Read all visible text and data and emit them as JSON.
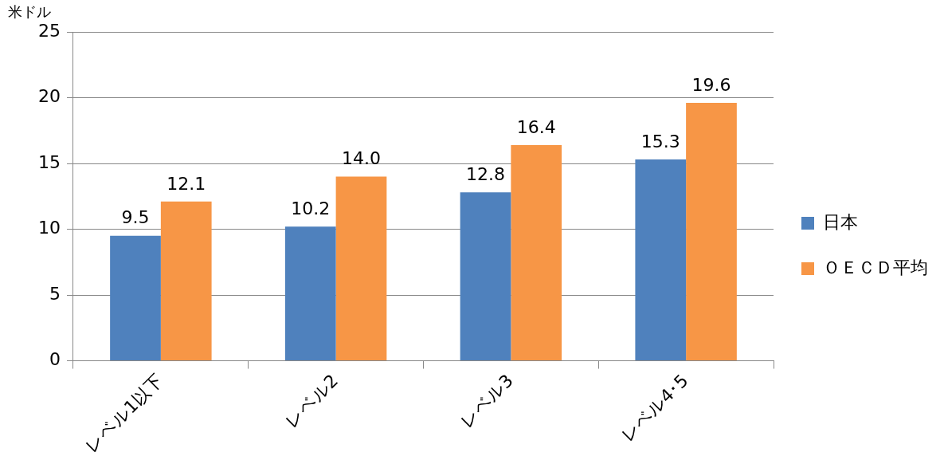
{
  "chart_data": {
    "type": "bar",
    "ylabel": "米ドル",
    "categories": [
      "レベル1以下",
      "レベル2",
      "レベル3",
      "レベル4･5"
    ],
    "series": [
      {
        "name": "日本",
        "color": "#4f81bd",
        "values": [
          9.5,
          10.2,
          12.8,
          15.3
        ],
        "value_labels": [
          "9.5",
          "10.2",
          "12.8",
          "15.3"
        ]
      },
      {
        "name": "ＯＥＣＤ平均",
        "color": "#f79646",
        "values": [
          12.1,
          14.0,
          16.4,
          19.6
        ],
        "value_labels": [
          "12.1",
          "14.0",
          "16.4",
          "19.6"
        ]
      }
    ],
    "ylim": [
      0,
      25
    ],
    "yticks": [
      0,
      5,
      10,
      15,
      20,
      25
    ],
    "grid": "y",
    "legend": "right",
    "data_labels": true
  }
}
